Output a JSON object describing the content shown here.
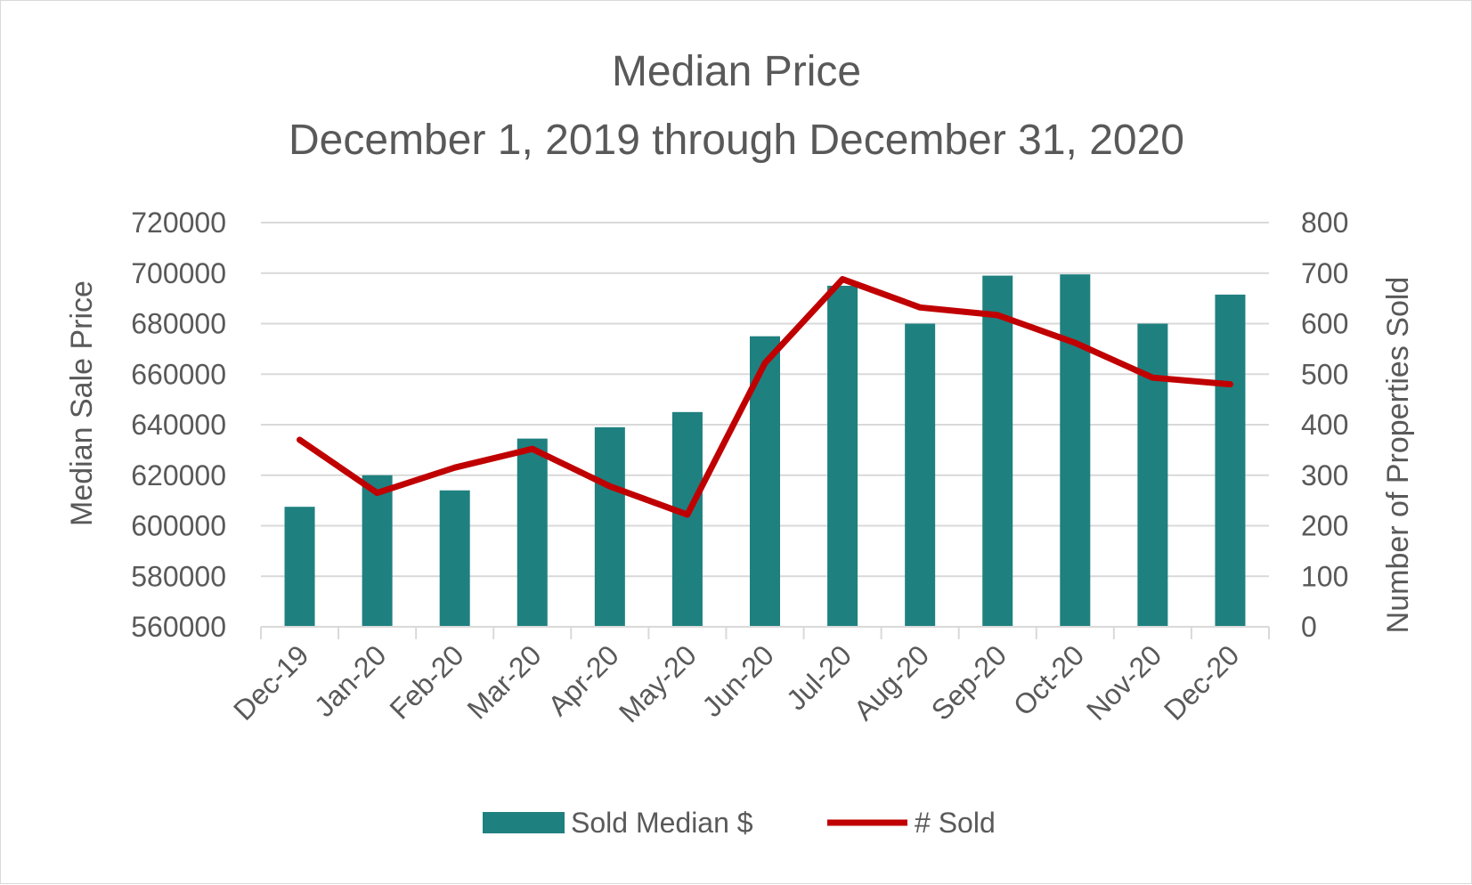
{
  "chart_data": {
    "type": "bar+line",
    "title": "Median Price",
    "subtitle": "December 1, 2019 through December 31, 2020",
    "categories": [
      "Dec-19",
      "Jan-20",
      "Feb-20",
      "Mar-20",
      "Apr-20",
      "May-20",
      "Jun-20",
      "Jul-20",
      "Aug-20",
      "Sep-20",
      "Oct-20",
      "Nov-20",
      "Dec-20"
    ],
    "series": [
      {
        "name": "Sold Median $",
        "type": "bar",
        "axis": "left",
        "color": "#1f8080",
        "values": [
          607500,
          620000,
          614000,
          634500,
          639000,
          645000,
          675000,
          695000,
          680000,
          699000,
          699500,
          680000,
          691500
        ]
      },
      {
        "name": "# Sold",
        "type": "line",
        "axis": "right",
        "color": "#c00000",
        "values": [
          370,
          265,
          315,
          352,
          278,
          222,
          522,
          688,
          632,
          617,
          562,
          493,
          480
        ]
      }
    ],
    "ylabel": "Median Sale Price",
    "y2label": "Number of Properties Sold",
    "ylim": [
      560000,
      720000
    ],
    "yticks": [
      "560000",
      "580000",
      "600000",
      "620000",
      "640000",
      "660000",
      "680000",
      "700000",
      "720000"
    ],
    "y2lim": [
      0,
      800
    ],
    "y2ticks": [
      "0",
      "100",
      "200",
      "300",
      "400",
      "500",
      "600",
      "700",
      "800"
    ],
    "grid": true,
    "legend_position": "bottom"
  }
}
